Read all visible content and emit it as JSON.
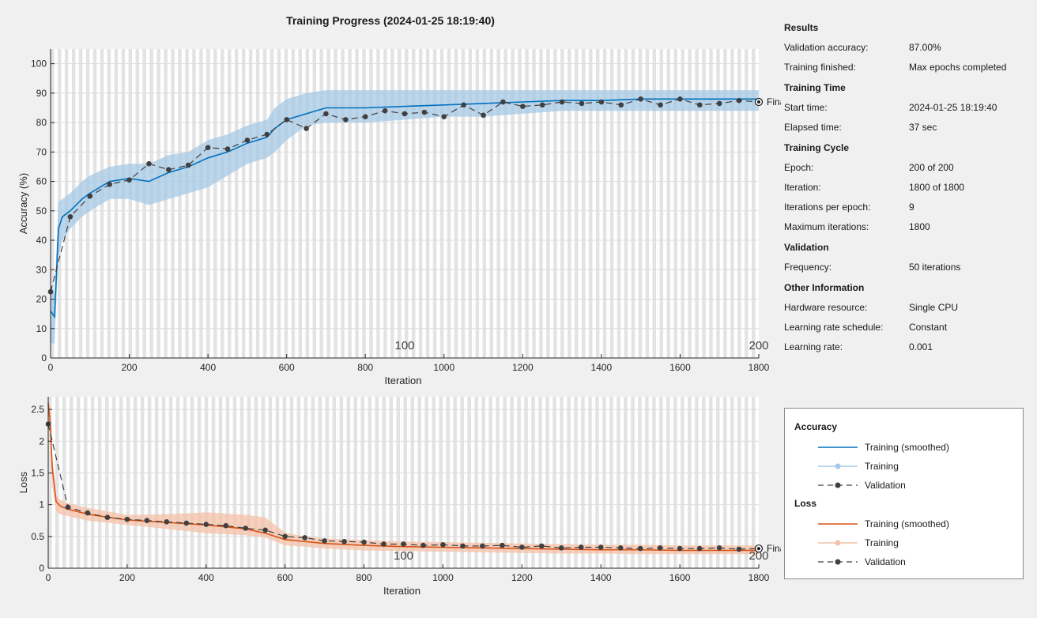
{
  "title": "Training Progress (2024-01-25 18:19:40)",
  "chart_data": [
    {
      "type": "line",
      "title": "Accuracy",
      "xlabel": "Iteration",
      "ylabel": "Accuracy (%)",
      "xlim": [
        0,
        1800
      ],
      "ylim": [
        0,
        105
      ],
      "x_ticks": [
        0,
        200,
        400,
        600,
        800,
        1000,
        1200,
        1400,
        1600,
        1800
      ],
      "y_ticks": [
        0,
        10,
        20,
        30,
        40,
        50,
        60,
        70,
        80,
        90,
        100
      ],
      "epoch_labels": [
        {
          "x": 900,
          "text": "100"
        },
        {
          "x": 1800,
          "text": "200"
        }
      ],
      "final_label": "Final",
      "final_value": 87,
      "series": [
        {
          "name": "Training (smoothed)",
          "color": "#0072bd",
          "x": [
            0,
            10,
            20,
            30,
            50,
            80,
            100,
            150,
            200,
            250,
            300,
            350,
            400,
            450,
            500,
            550,
            570,
            600,
            650,
            700,
            800,
            900,
            1000,
            1100,
            1200,
            1300,
            1400,
            1500,
            1600,
            1700,
            1800
          ],
          "y": [
            16,
            14,
            44,
            48,
            50,
            54,
            56,
            60,
            61,
            60,
            63,
            65,
            68,
            70,
            73,
            75,
            78,
            81,
            83,
            85,
            85,
            85.5,
            86,
            86.5,
            87,
            87.5,
            87.5,
            88,
            88,
            88,
            88
          ]
        },
        {
          "name": "Training",
          "color": "#a6c8e6",
          "band_low": [
            5,
            5,
            35,
            40,
            44,
            48,
            50,
            54,
            54,
            52,
            54,
            56,
            58,
            62,
            66,
            68,
            70,
            74,
            79,
            80,
            80,
            81,
            82,
            82,
            83,
            84,
            84,
            84,
            84,
            84,
            84
          ],
          "band_high": [
            25,
            22,
            53,
            54,
            56,
            60,
            62,
            65,
            66,
            66,
            69,
            70,
            74,
            76,
            79,
            81,
            85,
            88,
            90,
            91,
            91,
            91,
            91,
            91,
            91,
            91,
            91,
            91,
            91,
            91,
            91
          ]
        },
        {
          "name": "Validation",
          "color": "#404040",
          "x": [
            0,
            50,
            100,
            150,
            200,
            250,
            300,
            350,
            400,
            450,
            500,
            550,
            600,
            650,
            700,
            750,
            800,
            850,
            900,
            950,
            1000,
            1050,
            1100,
            1150,
            1200,
            1250,
            1300,
            1350,
            1400,
            1450,
            1500,
            1550,
            1600,
            1650,
            1700,
            1750,
            1800
          ],
          "y": [
            22.5,
            48,
            55,
            59,
            60.5,
            66,
            64,
            65.5,
            71.5,
            71,
            74,
            76,
            81,
            78,
            83,
            81,
            82,
            84,
            83,
            83.5,
            82,
            86,
            82.5,
            87,
            85.5,
            86,
            87,
            86.5,
            87,
            86,
            88,
            86,
            88,
            86,
            86.5,
            87.5,
            87
          ]
        }
      ]
    },
    {
      "type": "line",
      "title": "Loss",
      "xlabel": "Iteration",
      "ylabel": "Loss",
      "xlim": [
        0,
        1800
      ],
      "ylim": [
        0,
        2.7
      ],
      "x_ticks": [
        0,
        200,
        400,
        600,
        800,
        1000,
        1200,
        1400,
        1600,
        1800
      ],
      "y_ticks": [
        0,
        0.5,
        1,
        1.5,
        2,
        2.5
      ],
      "epoch_labels": [
        {
          "x": 900,
          "text": "100"
        },
        {
          "x": 1800,
          "text": "200"
        }
      ],
      "final_label": "Final",
      "final_value": 0.31,
      "series": [
        {
          "name": "Training (smoothed)",
          "color": "#d95319",
          "x": [
            0,
            5,
            10,
            20,
            30,
            50,
            100,
            200,
            300,
            400,
            500,
            550,
            600,
            650,
            700,
            800,
            900,
            1000,
            1100,
            1200,
            1300,
            1400,
            1500,
            1600,
            1700,
            1800
          ],
          "y": [
            2.6,
            2.3,
            1.6,
            1.05,
            0.98,
            0.93,
            0.85,
            0.76,
            0.72,
            0.68,
            0.62,
            0.55,
            0.45,
            0.42,
            0.39,
            0.36,
            0.34,
            0.33,
            0.32,
            0.31,
            0.3,
            0.29,
            0.29,
            0.28,
            0.28,
            0.28
          ]
        },
        {
          "name": "Training",
          "color": "#f4c2a8",
          "band_low": [
            2.4,
            2.0,
            1.3,
            0.9,
            0.85,
            0.82,
            0.75,
            0.68,
            0.62,
            0.55,
            0.52,
            0.48,
            0.36,
            0.34,
            0.31,
            0.28,
            0.27,
            0.26,
            0.25,
            0.24,
            0.23,
            0.23,
            0.22,
            0.22,
            0.22,
            0.22
          ],
          "band_high": [
            2.7,
            2.5,
            1.8,
            1.15,
            1.08,
            1.02,
            0.95,
            0.84,
            0.85,
            0.88,
            0.84,
            0.8,
            0.56,
            0.5,
            0.47,
            0.44,
            0.42,
            0.41,
            0.4,
            0.39,
            0.38,
            0.37,
            0.37,
            0.36,
            0.36,
            0.36
          ]
        },
        {
          "name": "Validation",
          "color": "#404040",
          "x": [
            0,
            50,
            100,
            150,
            200,
            250,
            300,
            350,
            400,
            450,
            500,
            550,
            600,
            650,
            700,
            750,
            800,
            850,
            900,
            950,
            1000,
            1050,
            1100,
            1150,
            1200,
            1250,
            1300,
            1350,
            1400,
            1450,
            1500,
            1550,
            1600,
            1650,
            1700,
            1750,
            1800
          ],
          "y": [
            2.27,
            0.96,
            0.87,
            0.8,
            0.77,
            0.75,
            0.73,
            0.71,
            0.69,
            0.67,
            0.63,
            0.6,
            0.5,
            0.48,
            0.43,
            0.42,
            0.41,
            0.38,
            0.38,
            0.36,
            0.37,
            0.35,
            0.35,
            0.36,
            0.33,
            0.35,
            0.32,
            0.33,
            0.33,
            0.32,
            0.31,
            0.32,
            0.31,
            0.31,
            0.32,
            0.3,
            0.31
          ]
        }
      ]
    }
  ],
  "info": {
    "results": {
      "title": "Results",
      "validation_accuracy_label": "Validation accuracy:",
      "validation_accuracy": "87.00%",
      "training_finished_label": "Training finished:",
      "training_finished": "Max epochs completed"
    },
    "training_time": {
      "title": "Training Time",
      "start_time_label": "Start time:",
      "start_time": "2024-01-25 18:19:40",
      "elapsed_time_label": "Elapsed time:",
      "elapsed_time": "37 sec"
    },
    "training_cycle": {
      "title": "Training Cycle",
      "epoch_label": "Epoch:",
      "epoch": "200 of 200",
      "iteration_label": "Iteration:",
      "iteration": "1800 of 1800",
      "iter_per_epoch_label": "Iterations per epoch:",
      "iter_per_epoch": "9",
      "max_iter_label": "Maximum iterations:",
      "max_iter": "1800"
    },
    "validation": {
      "title": "Validation",
      "frequency_label": "Frequency:",
      "frequency": "50 iterations"
    },
    "other": {
      "title": "Other Information",
      "hardware_label": "Hardware resource:",
      "hardware": "Single CPU",
      "lr_schedule_label": "Learning rate schedule:",
      "lr_schedule": "Constant",
      "lr_label": "Learning rate:",
      "lr": "0.001"
    }
  },
  "legend": {
    "accuracy_title": "Accuracy",
    "loss_title": "Loss",
    "smoothed": "Training (smoothed)",
    "training": "Training",
    "validation": "Validation",
    "colors": {
      "acc_smooth": "#0072bd",
      "acc_train": "#a6c8e6",
      "loss_smooth": "#d95319",
      "loss_train": "#f4c2a8",
      "val": "#404040"
    }
  }
}
